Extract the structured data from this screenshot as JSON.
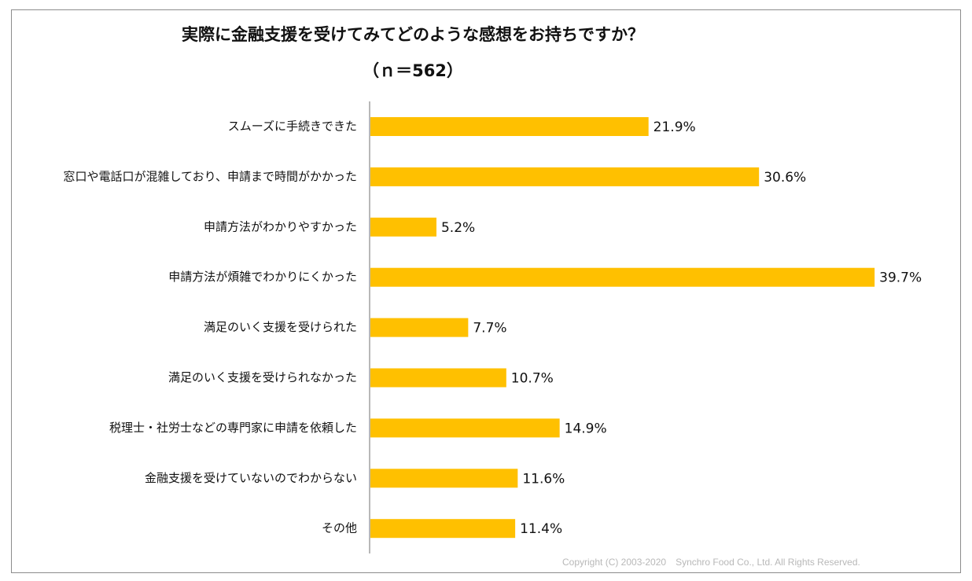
{
  "chart_data": {
    "type": "bar",
    "orientation": "horizontal",
    "title": "実際に金融支援を受けてみてどのような感想をお持ちですか？",
    "subtitle": "（ｎ＝562）",
    "xlabel": "",
    "ylabel": "",
    "xlim": [
      0,
      40
    ],
    "grid": false,
    "legend": "none",
    "unit": "%",
    "bar_color": "#FFC000",
    "categories": [
      "スムーズに手続きできた",
      "窓口や電話口が混雑しており、申請まで時間がかかった",
      "申請方法がわかりやすかった",
      "申請方法が煩雑でわかりにくかった",
      "満足のいく支援を受けられた",
      "満足のいく支援を受けられなかった",
      "税理士・社労士などの専門家に申請を依頼した",
      "金融支援を受けていないのでわからない",
      "その他"
    ],
    "values": [
      21.9,
      30.6,
      5.2,
      39.7,
      7.7,
      10.7,
      14.9,
      11.6,
      11.4
    ],
    "data_labels": [
      "21.9%",
      "30.6%",
      "5.2%",
      "39.7%",
      "7.7%",
      "10.7%",
      "14.9%",
      "11.6%",
      "11.4%"
    ]
  },
  "footer": {
    "copyright": "Copyright (C) 2003-2020　Synchro Food Co., Ltd. All Rights Reserved."
  }
}
